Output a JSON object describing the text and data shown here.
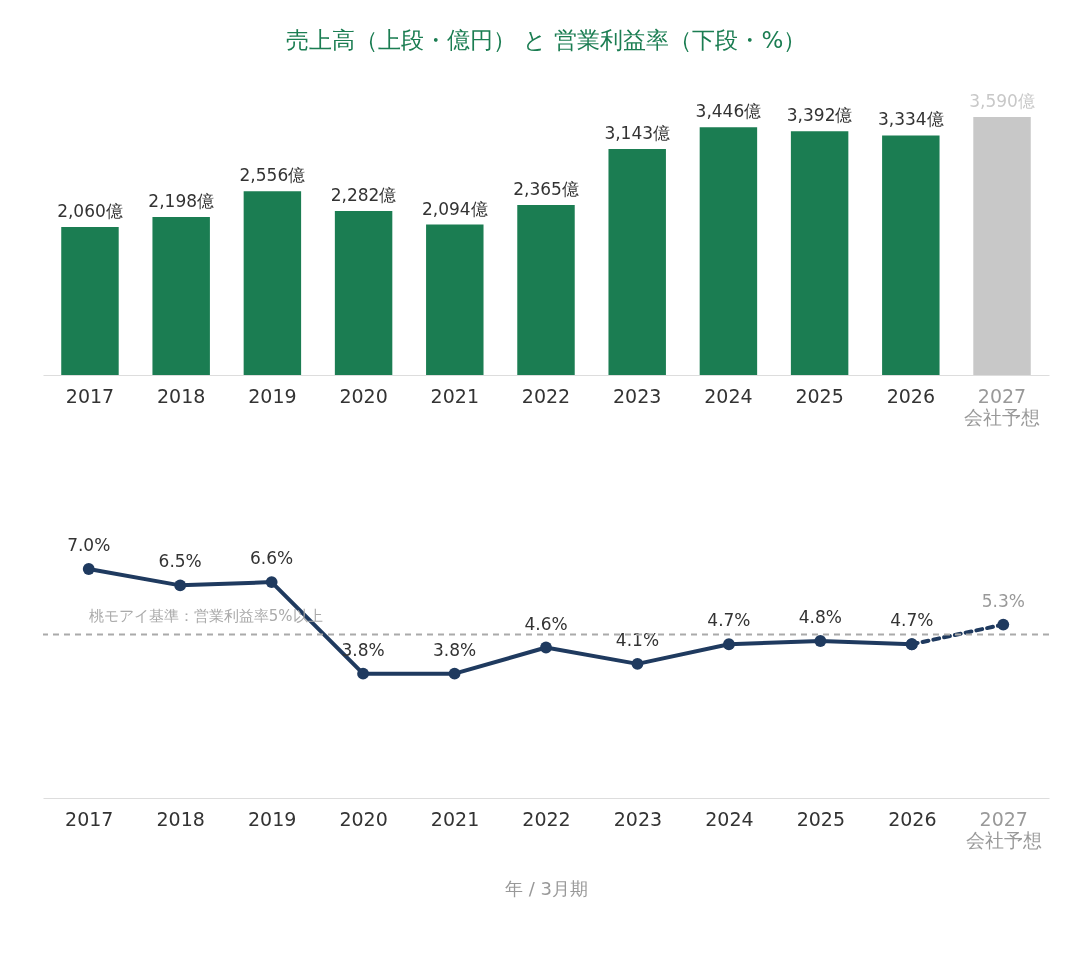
{
  "chart_data": [
    {
      "type": "bar",
      "title": "売上高（上段・億円） と 営業利益率（下段・%）",
      "categories": [
        "2017",
        "2018",
        "2019",
        "2020",
        "2021",
        "2022",
        "2023",
        "2024",
        "2025",
        "2026",
        "2027\n会社予想"
      ],
      "values": [
        2060,
        2198,
        2556,
        2282,
        2094,
        2365,
        3143,
        3446,
        3392,
        3334,
        3590
      ],
      "color": "#1b7d52",
      "colors": [
        "#1b7d52",
        "#1b7d52",
        "#1b7d52",
        "#1b7d52",
        "#1b7d52",
        "#1b7d52",
        "#1b7d52",
        "#1b7d52",
        "#1b7d52",
        "#1b7d52",
        "#c8c8c8"
      ],
      "value_labels": [
        "2,060億",
        "2,198億",
        "2,556億",
        "2,282億",
        "2,094億",
        "2,365億",
        "3,143億",
        "3,446億",
        "3,392億",
        "3,334億",
        "3,590億"
      ],
      "tick_labels": "x",
      "grid": false
    },
    {
      "type": "line",
      "xlabel": "年 / 3月期",
      "categories": [
        "2017",
        "2018",
        "2019",
        "2020",
        "2021",
        "2022",
        "2023",
        "2024",
        "2025",
        "2026",
        "2027\n会社予想"
      ],
      "series": [
        {
          "color": "#1f3a5f",
          "line_style": "solid",
          "values": [
            7.0,
            6.5,
            6.6,
            3.8,
            3.8,
            4.6,
            4.1,
            4.7,
            4.8,
            4.7,
            null
          ],
          "value_labels": [
            "7.0%",
            "6.5%",
            "6.6%",
            "3.8%",
            "3.8%",
            "4.6%",
            "4.1%",
            "4.7%",
            "4.8%",
            "4.7%",
            null
          ]
        },
        {
          "color": "#1f3a5f",
          "line_style": "dashed",
          "values": [
            null,
            null,
            null,
            null,
            null,
            null,
            null,
            null,
            null,
            4.7,
            5.3
          ],
          "value_labels": [
            null,
            null,
            null,
            null,
            null,
            null,
            null,
            null,
            null,
            null,
            "5.3%"
          ]
        }
      ],
      "marker": "circle",
      "ref_lines": [
        {
          "axis": "y",
          "value": 5,
          "label": "桃モアイ基準：営業利益率5%以上",
          "color": "#aaaaaa",
          "line_style": "dashed"
        }
      ],
      "tick_labels": "x",
      "grid": false
    }
  ]
}
